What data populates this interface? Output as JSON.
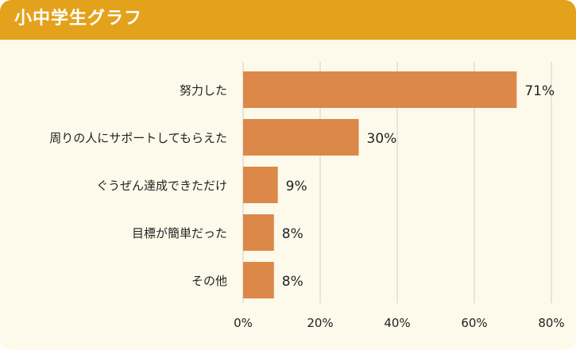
{
  "header": {
    "title": "小中学生グラフ"
  },
  "colors": {
    "header_bg": "#e4a11b",
    "card_bg": "#fdfaeb",
    "bar": "#db8848",
    "grid": "#d9d6cc",
    "text": "#222222"
  },
  "chart_data": {
    "type": "bar",
    "orientation": "horizontal",
    "title": "小中学生グラフ",
    "categories": [
      "努力した",
      "周りの人にサポートしてもらえた",
      "ぐうぜん達成できただけ",
      "目標が簡単だった",
      "その他"
    ],
    "values": [
      71,
      30,
      9,
      8,
      8
    ],
    "value_labels": [
      "71%",
      "30%",
      "9%",
      "8%",
      "8%"
    ],
    "xlim": [
      0,
      80
    ],
    "xticks": [
      0,
      20,
      40,
      60,
      80
    ],
    "xtick_labels": [
      "0%",
      "20%",
      "40%",
      "60%",
      "80%"
    ],
    "grid": true
  }
}
